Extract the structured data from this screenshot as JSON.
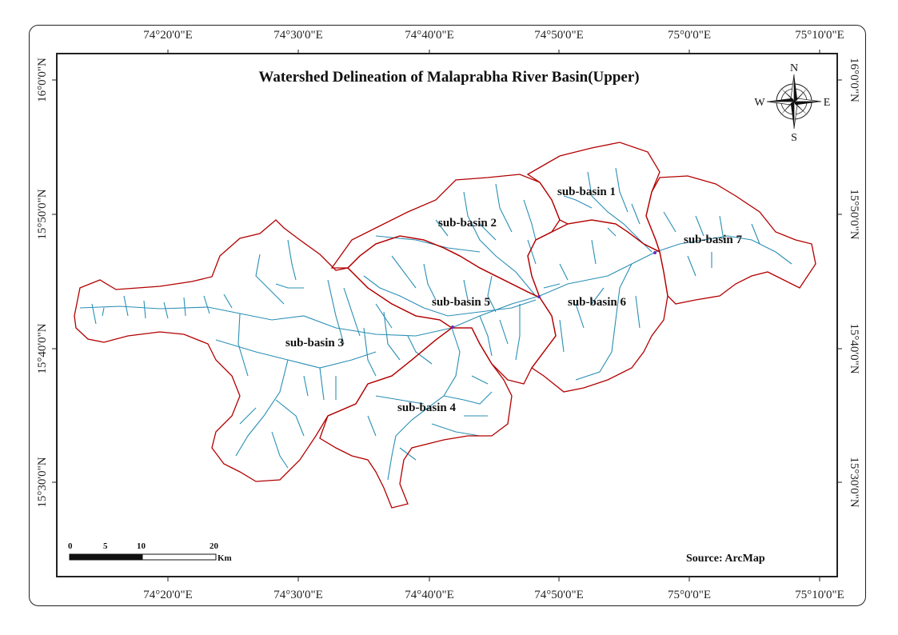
{
  "title": "Watershed Delineation of Malaprabha River Basin(Upper)",
  "longitude_labels": [
    "74°20'0\"E",
    "74°30'0\"E",
    "74°40'0\"E",
    "74°50'0\"E",
    "75°0'0\"E",
    "75°10'0\"E"
  ],
  "latitude_labels": [
    "16°0'0\"N",
    "15°50'0\"N",
    "15°40'0\"N",
    "15°30'0\"N"
  ],
  "sub_basins": [
    {
      "label": "sub-basin 1"
    },
    {
      "label": "sub-basin 2"
    },
    {
      "label": "sub-basin 3"
    },
    {
      "label": "sub-basin 4"
    },
    {
      "label": "sub-basin 5"
    },
    {
      "label": "sub-basin 6"
    },
    {
      "label": "sub-basin 7"
    }
  ],
  "compass": {
    "n": "N",
    "s": "S",
    "e": "E",
    "w": "W"
  },
  "scale_bar": {
    "ticks": [
      "0",
      "5",
      "10",
      "20"
    ],
    "unit": "Km"
  },
  "source": "Source: ArcMap",
  "colors": {
    "boundary": "#b30000",
    "stream": "#2a8fb5",
    "frame": "#222222"
  }
}
